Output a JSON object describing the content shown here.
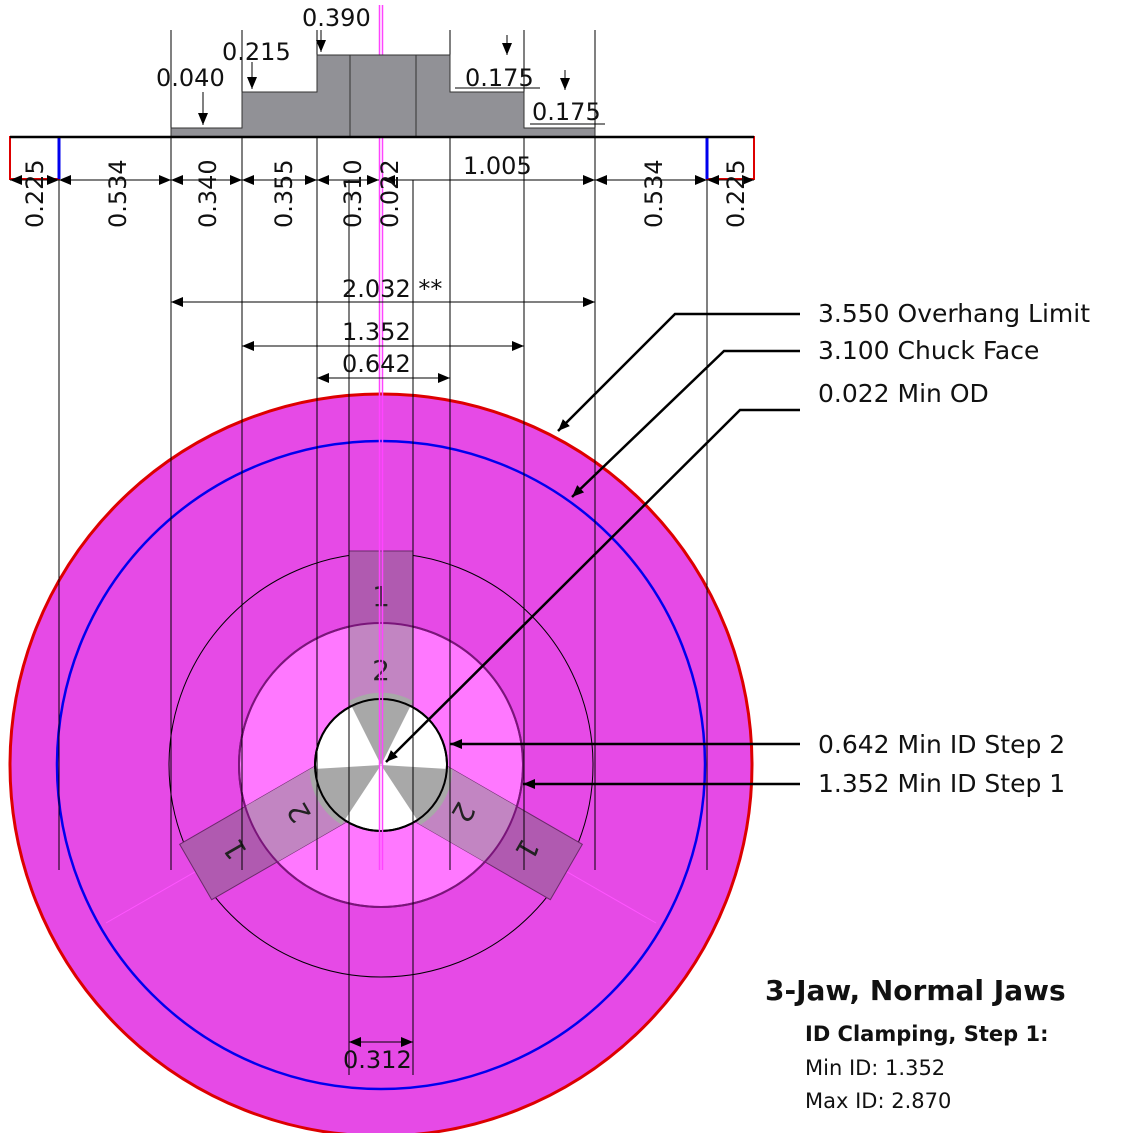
{
  "profile": {
    "heights": [
      "0.390",
      "0.215",
      "0.040",
      "0.175",
      "0.175"
    ],
    "widths": [
      "0.225",
      "0.534",
      "0.340",
      "0.355",
      "0.310",
      "0.022",
      "1.005",
      "0.534",
      "0.225"
    ]
  },
  "diameters": {
    "overall": "2.032 **",
    "step1": "1.352",
    "step2": "0.642",
    "jaw_gap": "0.312"
  },
  "callouts": [
    "3.550 Overhang Limit",
    "3.100 Chuck Face",
    "0.022 Min OD",
    "0.642 Min ID Step 2",
    "1.352 Min ID Step 1"
  ],
  "jaw_step_labels": [
    "1",
    "2",
    "1",
    "2",
    "1",
    "2"
  ],
  "info": {
    "title": "3-Jaw, Normal Jaws",
    "subtitle": "ID Clamping, Step 1:",
    "min_id": "Min ID: 1.352",
    "max_id": "Max ID: 2.870"
  },
  "colors": {
    "chuck_fill": "#e64ae6",
    "bore_fill": "#ff78ff",
    "overhang_circle": "#dd0000",
    "chuck_face_circle": "#0000ee",
    "jaw_fill": "#b05ab0",
    "part_fill": "#a0a0a0"
  }
}
